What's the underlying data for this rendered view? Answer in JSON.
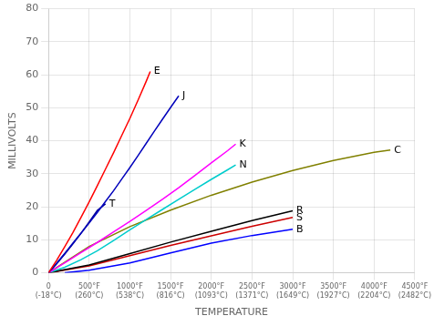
{
  "chart_data": {
    "type": "line",
    "xlabel": "TEMPERATURE",
    "ylabel": "MILLIVOLTS",
    "xlim": [
      0,
      4500
    ],
    "ylim": [
      0,
      80
    ],
    "xticks": [
      {
        "value": 0,
        "label": "0\n(-18°C)"
      },
      {
        "value": 500,
        "label": "500°F\n(260°C)"
      },
      {
        "value": 1000,
        "label": "1000°F\n(538°C)"
      },
      {
        "value": 1500,
        "label": "1500°F\n(816°C)"
      },
      {
        "value": 2000,
        "label": "2000°F\n(1093°C)"
      },
      {
        "value": 2500,
        "label": "2500°F\n(1371°C)"
      },
      {
        "value": 3000,
        "label": "3000°F\n(1649°C)"
      },
      {
        "value": 3500,
        "label": "3500°F\n(1927°C)"
      },
      {
        "value": 4000,
        "label": "4000°F\n(2204°C)"
      },
      {
        "value": 4500,
        "label": "4500°F\n(2482°C)"
      }
    ],
    "yticks": [
      0,
      10,
      20,
      30,
      40,
      50,
      60,
      70,
      80
    ],
    "grid": true,
    "series": [
      {
        "name": "E",
        "color": "#ff0000",
        "x": [
          0,
          100,
          200,
          300,
          400,
          500,
          600,
          700,
          800,
          900,
          1000,
          1100,
          1200,
          1250
        ],
        "values": [
          0,
          3.8,
          7.9,
          12.2,
          16.8,
          21.5,
          26.4,
          31.4,
          36.4,
          41.6,
          46.8,
          52.3,
          58.0,
          61.0
        ]
      },
      {
        "name": "J",
        "color": "#0000bb",
        "x": [
          0,
          100,
          200,
          300,
          400,
          500,
          600,
          700,
          800,
          900,
          1000,
          1100,
          1200,
          1300,
          1400,
          1500,
          1600
        ],
        "values": [
          0,
          2.9,
          5.9,
          9.0,
          12.0,
          15.1,
          18.3,
          21.6,
          24.9,
          28.4,
          31.9,
          35.5,
          39.2,
          42.9,
          46.5,
          50.1,
          53.6
        ]
      },
      {
        "name": "K",
        "color": "#ff00ff",
        "x": [
          0,
          200,
          400,
          600,
          800,
          1000,
          1200,
          1400,
          1600,
          1800,
          2000,
          2200,
          2300
        ],
        "values": [
          0,
          3.0,
          6.1,
          9.2,
          12.4,
          15.6,
          18.9,
          22.3,
          25.8,
          29.5,
          33.3,
          37.0,
          39.0
        ]
      },
      {
        "name": "N",
        "color": "#00cccc",
        "x": [
          0,
          200,
          400,
          600,
          800,
          1000,
          1200,
          1400,
          1600,
          1800,
          2000,
          2200,
          2300
        ],
        "values": [
          0,
          1.7,
          4.0,
          6.7,
          9.8,
          13.0,
          16.1,
          19.2,
          22.3,
          25.3,
          28.3,
          31.2,
          32.7
        ]
      },
      {
        "name": "T",
        "color": "#000099",
        "x": [
          0,
          100,
          200,
          300,
          400,
          500,
          600,
          700
        ],
        "values": [
          0,
          2.7,
          5.7,
          8.8,
          12.0,
          15.4,
          18.9,
          20.9
        ]
      },
      {
        "name": "C",
        "color": "#808000",
        "x": [
          0,
          500,
          1000,
          1500,
          2000,
          2500,
          3000,
          3500,
          4000,
          4200
        ],
        "values": [
          0,
          8.0,
          14.0,
          19.0,
          23.5,
          27.5,
          31.0,
          34.0,
          36.5,
          37.2
        ]
      },
      {
        "name": "R",
        "color": "#000000",
        "x": [
          0,
          500,
          1000,
          1500,
          2000,
          2500,
          3000
        ],
        "values": [
          0,
          2.4,
          5.8,
          9.3,
          12.6,
          15.8,
          18.8
        ]
      },
      {
        "name": "S",
        "color": "#cc0000",
        "x": [
          0,
          500,
          1000,
          1500,
          2000,
          2500,
          3000
        ],
        "values": [
          0,
          2.1,
          5.2,
          8.3,
          11.2,
          14.1,
          16.8
        ]
      },
      {
        "name": "B",
        "color": "#0000ff",
        "x": [
          200,
          500,
          1000,
          1500,
          2000,
          2500,
          3000
        ],
        "values": [
          0,
          0.8,
          3.0,
          6.0,
          9.0,
          11.3,
          13.2
        ]
      }
    ]
  }
}
